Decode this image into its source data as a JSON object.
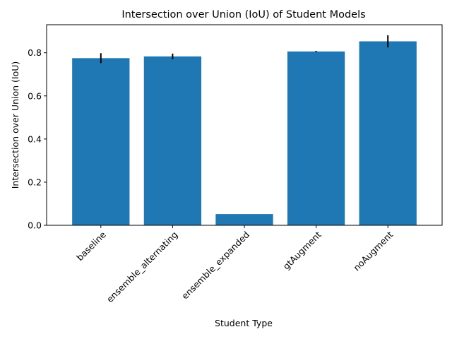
{
  "chart_data": {
    "type": "bar",
    "title": "Intersection over Union (IoU) of Student Models",
    "xlabel": "Student Type",
    "ylabel": "Intersection over Union (IoU)",
    "categories": [
      "baseline",
      "ensemble_alternating",
      "ensemble_expanded",
      "gtAugment",
      "noAugment"
    ],
    "values": [
      0.775,
      0.783,
      0.052,
      0.806,
      0.853
    ],
    "errors": [
      0.023,
      0.013,
      0.0,
      0.003,
      0.028
    ],
    "ylim": [
      0,
      0.93
    ],
    "yticks": [
      "0.0",
      "0.2",
      "0.4",
      "0.6",
      "0.8"
    ],
    "bar_color": "#1f77b4",
    "error_color": "#000000",
    "grid": false,
    "legend": "none"
  }
}
